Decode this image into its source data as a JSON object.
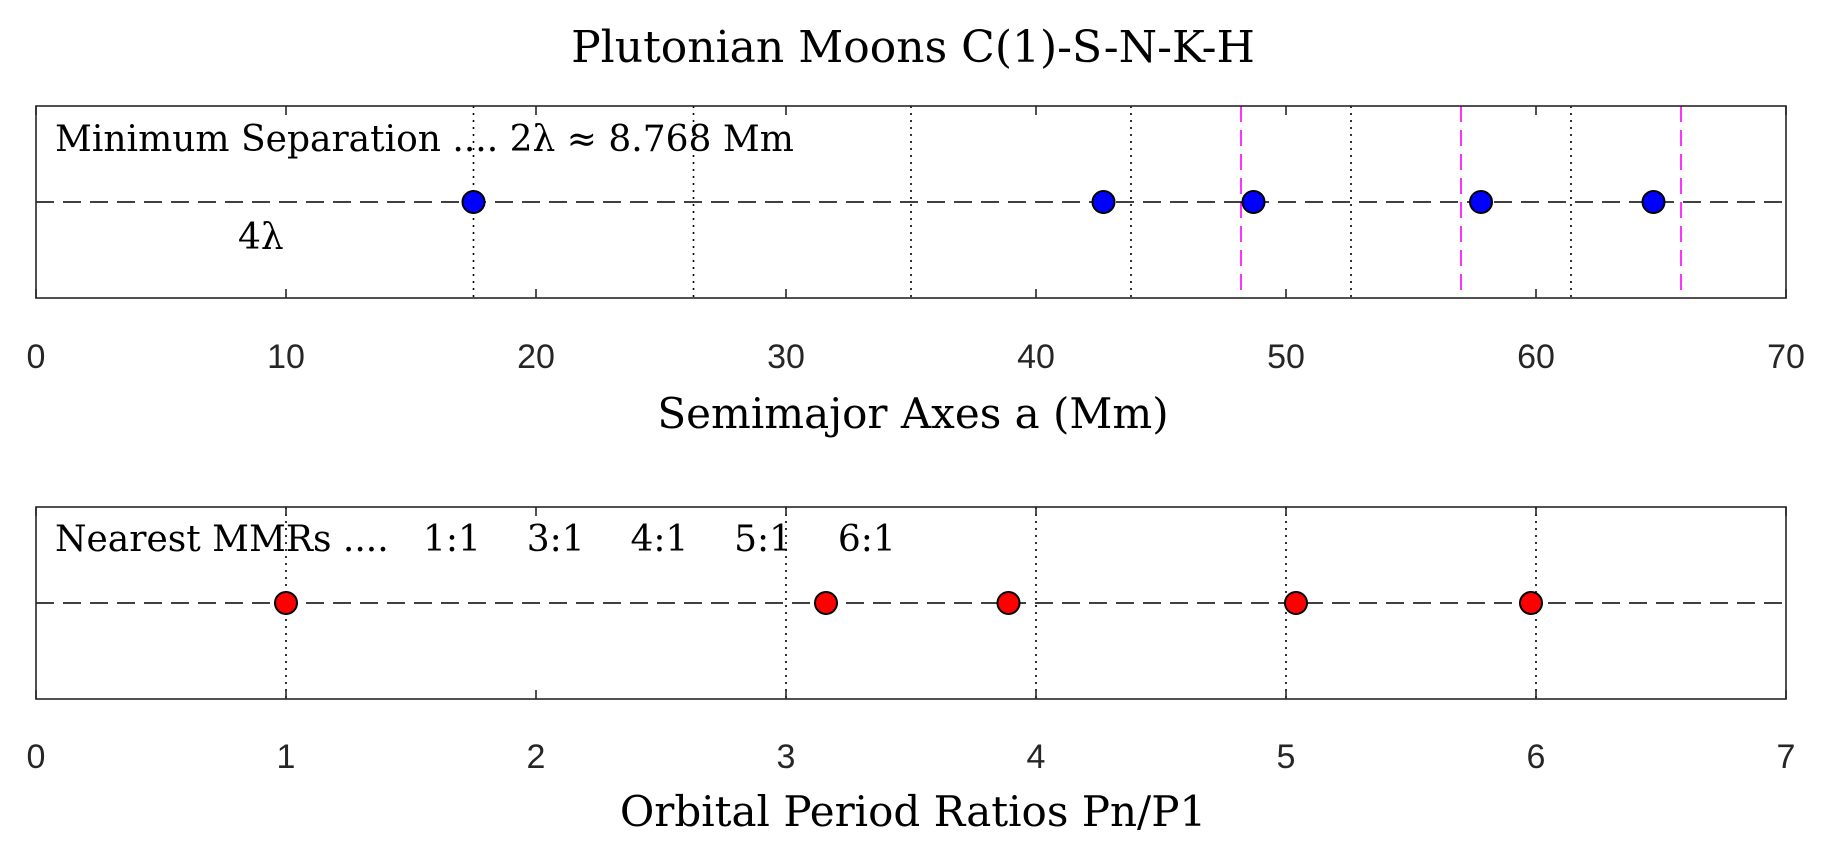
{
  "figure": {
    "title": "Plutonian Moons  C(1)-S-N-K-H"
  },
  "chart_data": [
    {
      "type": "scatter",
      "panel": "semimajor-axes",
      "xlabel": "Semimajor Axes a (Mm)",
      "xlim": [
        0,
        70
      ],
      "xticks": [
        "0",
        "10",
        "20",
        "30",
        "40",
        "50",
        "60",
        "70"
      ],
      "grid": false,
      "annotation": "Minimum Separation ....  2λ ≈ 8.768 Mm",
      "annotation_secondary": "4λ",
      "series": [
        {
          "color": "#0000ff",
          "x": [
            17.5,
            42.7,
            48.7,
            57.8,
            64.7
          ],
          "y": [
            0,
            0,
            0,
            0,
            0
          ]
        }
      ],
      "reference_lines_dotted": [
        17.5,
        26.3,
        35.0,
        43.8,
        52.6,
        61.4
      ],
      "reference_lines_magenta_dashed": [
        48.2,
        57.0,
        65.8
      ],
      "magenta_color": "#ff00ff"
    },
    {
      "type": "scatter",
      "panel": "period-ratios",
      "xlabel": "Orbital Period Ratios Pn/P1",
      "xlim": [
        0,
        7
      ],
      "xticks": [
        "0",
        "1",
        "2",
        "3",
        "4",
        "5",
        "6",
        "7"
      ],
      "grid": false,
      "annotation": "Nearest MMRs ....   1:1    3:1    4:1    5:1    6:1",
      "series": [
        {
          "color": "#ff0000",
          "x": [
            1.0,
            3.16,
            3.89,
            5.04,
            5.98
          ],
          "y": [
            0,
            0,
            0,
            0,
            0
          ]
        }
      ],
      "reference_lines_dotted": [
        1,
        3,
        4,
        5,
        6
      ]
    }
  ]
}
